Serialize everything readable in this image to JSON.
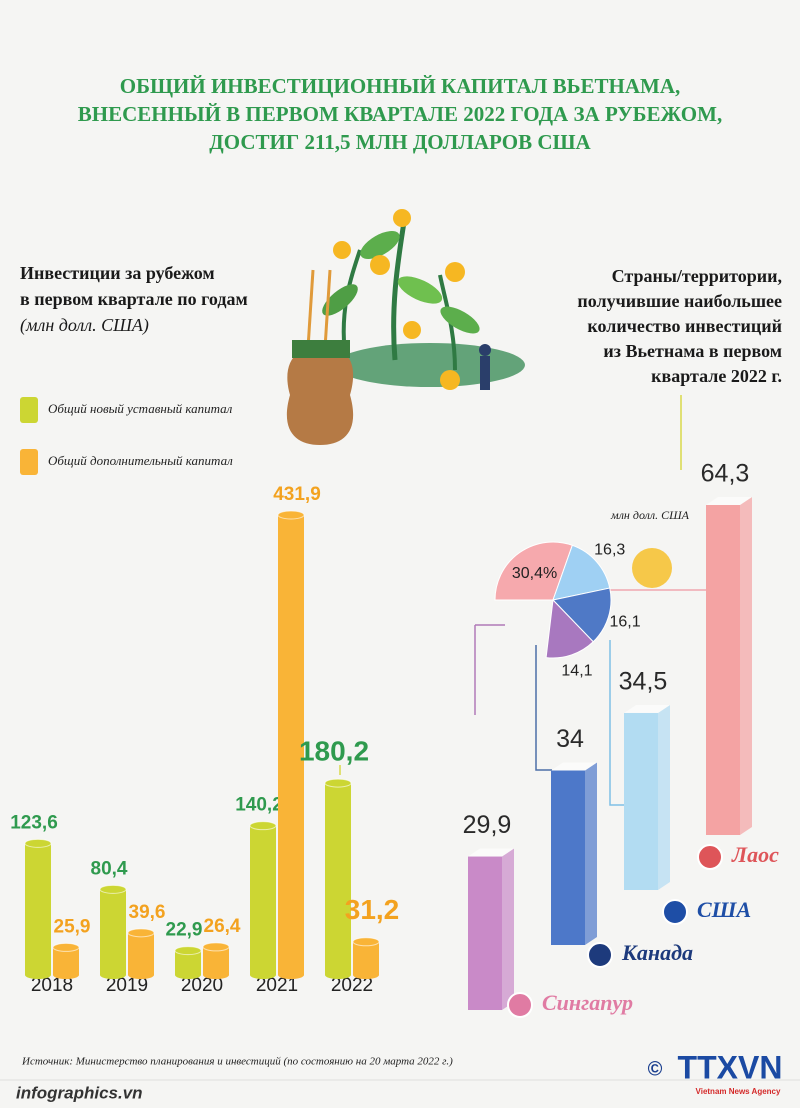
{
  "title": [
    "ОБЩИЙ ИНВЕСТИЦИОННЫЙ КАПИТАЛ ВЬЕТНАМА,",
    "ВНЕСЕННЫЙ В ПЕРВОМ КВАРТАЛЕ 2022 ГОДА ЗА РУБЕЖОМ,",
    "ДОСТИГ 211,5 МЛН ДОЛЛАРОВ США"
  ],
  "chart_data": [
    {
      "type": "bar",
      "title": [
        "Инвестиции за рубежом",
        "в первом квартале по годам"
      ],
      "subtitle": "(млн долл. США)",
      "categories": [
        "2018",
        "2019",
        "2020",
        "2021",
        "2022"
      ],
      "series": [
        {
          "name": "Общий новый уставный капитал",
          "color": "#ccd633",
          "values": [
            123.6,
            80.4,
            22.9,
            140.2,
            180.2
          ],
          "value_labels": [
            "123,6",
            "80,4",
            "22,9",
            "140,2",
            "180,2"
          ]
        },
        {
          "name": "Общий дополнительный капитал",
          "color": "#f9b437",
          "values": [
            25.9,
            39.6,
            26.4,
            431.9,
            31.2
          ],
          "value_labels": [
            "25,9",
            "39,6",
            "26,4",
            "431,9",
            "31,2"
          ]
        }
      ]
    },
    {
      "type": "bar3d",
      "title": [
        "Страны/территории,",
        "получившие наибольшее",
        "количество инвестиций",
        "из Вьетнама в первом",
        "квартале 2022 г."
      ],
      "unit": "млн долл. США",
      "categories": [
        "Сингапур",
        "Канада",
        "США",
        "Лаос"
      ],
      "values": [
        29.9,
        34,
        34.5,
        64.3
      ],
      "value_labels": [
        "29,9",
        "34",
        "34,5",
        "64,3"
      ],
      "colors": [
        "#c98ac8",
        "#4d78c9",
        "#b2dcf2",
        "#f4a3a3"
      ],
      "label_colors": [
        "#e07ba3",
        "#1d3a7c",
        "#1e4ea6",
        "#de5559"
      ]
    },
    {
      "type": "pie",
      "categories": [
        "Лаос",
        "США",
        "Канада",
        "Сингапур"
      ],
      "values": [
        30.4,
        16.3,
        16.1,
        14.1
      ],
      "value_labels": [
        "30,4%",
        "16,3",
        "16,1",
        "14,1"
      ],
      "colors": [
        "#f6a9ad",
        "#9fd0f3",
        "#4f79c6",
        "#a878bf"
      ]
    }
  ],
  "footer": {
    "source": "Источник: Министерство планирования и инвестиций (по состоянию на 20 марта 2022 г.)",
    "site": "infographics.vn",
    "copyright": "©",
    "logo": "TTXVN",
    "logo_sub": "Vietnam News Agency"
  }
}
